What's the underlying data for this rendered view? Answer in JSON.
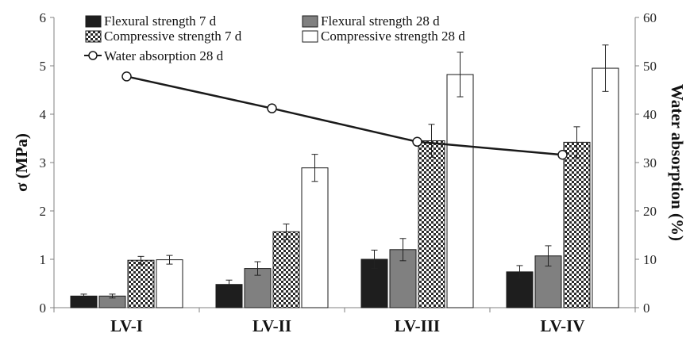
{
  "chart_data": {
    "type": "bar",
    "categories": [
      "LV-I",
      "LV-II",
      "LV-III",
      "LV-IV"
    ],
    "series": [
      {
        "name": "Flexural strength 7 d",
        "axis": "left",
        "kind": "bar",
        "pattern": "solid-black",
        "values": [
          0.24,
          0.48,
          1.0,
          0.74
        ],
        "errors": [
          0.04,
          0.09,
          0.19,
          0.13
        ]
      },
      {
        "name": "Flexural strength 28 d",
        "axis": "left",
        "kind": "bar",
        "pattern": "solid-gray",
        "values": [
          0.24,
          0.81,
          1.2,
          1.07
        ],
        "errors": [
          0.04,
          0.14,
          0.23,
          0.21
        ]
      },
      {
        "name": "Compressive strength 7 d",
        "axis": "left",
        "kind": "bar",
        "pattern": "checkered",
        "values": [
          0.98,
          1.57,
          3.45,
          3.42
        ],
        "errors": [
          0.08,
          0.16,
          0.34,
          0.32
        ]
      },
      {
        "name": "Compressive strength 28 d",
        "axis": "left",
        "kind": "bar",
        "pattern": "white",
        "values": [
          0.99,
          2.89,
          4.82,
          4.95
        ],
        "errors": [
          0.09,
          0.28,
          0.46,
          0.48
        ]
      },
      {
        "name": "Water absorption 28 d",
        "axis": "right",
        "kind": "line",
        "marker": "open-circle",
        "values": [
          47.8,
          41.2,
          34.3,
          31.6
        ]
      }
    ],
    "ylabel": "σ (MPa)",
    "ylabel_right": "Water absorption (%)",
    "ylim": [
      0,
      6
    ],
    "yticks": [
      "0",
      "1",
      "2",
      "3",
      "4",
      "5",
      "6"
    ],
    "ylim_right": [
      0,
      60
    ],
    "yticks_right": [
      "0",
      "10",
      "20",
      "30",
      "40",
      "50",
      "60"
    ],
    "grid": false,
    "legend": "top-left",
    "colors": {
      "flex7": "#1e1e1e",
      "flex28": "#808080",
      "line": "#1a1a1a"
    }
  }
}
